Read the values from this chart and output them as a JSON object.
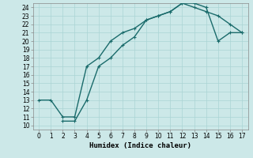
{
  "xlabel": "Humidex (Indice chaleur)",
  "background_color": "#cce8e8",
  "line_color": "#1a6b6b",
  "grid_color": "#aad4d4",
  "xlim": [
    -0.5,
    17.5
  ],
  "ylim": [
    9.5,
    24.5
  ],
  "xticks": [
    0,
    1,
    2,
    3,
    4,
    5,
    6,
    7,
    8,
    9,
    10,
    11,
    12,
    13,
    14,
    15,
    16,
    17
  ],
  "yticks": [
    10,
    11,
    12,
    13,
    14,
    15,
    16,
    17,
    18,
    19,
    20,
    21,
    22,
    23,
    24
  ],
  "curve1_x": [
    0,
    1,
    2,
    3,
    4,
    5,
    6,
    7,
    8,
    9,
    10,
    11,
    12,
    13,
    14,
    15,
    16,
    17
  ],
  "curve1_y": [
    13,
    13,
    11,
    11,
    17,
    18,
    20,
    21,
    21.5,
    22.5,
    23,
    23.5,
    24.5,
    24,
    23.5,
    23,
    22,
    21
  ],
  "curve2_x": [
    2,
    3,
    4,
    5,
    6,
    7,
    8,
    9,
    10,
    11,
    12,
    13,
    14,
    15,
    16,
    17
  ],
  "curve2_y": [
    10.5,
    10.5,
    13,
    17,
    18,
    19.5,
    20.5,
    22.5,
    23,
    23.5,
    24.5,
    24.5,
    24,
    20,
    21,
    21
  ],
  "tick_fontsize": 5.5,
  "xlabel_fontsize": 6.5,
  "linewidth": 1.0,
  "markersize": 3.5,
  "markeredgewidth": 0.8
}
